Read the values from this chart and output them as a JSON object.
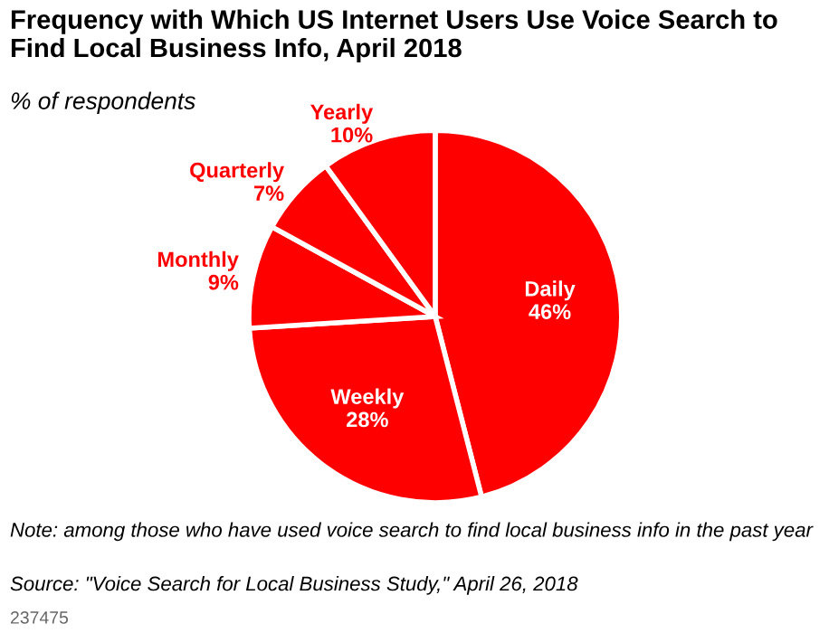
{
  "chart_data": {
    "type": "pie",
    "title": "Frequency with Which US Internet Users Use Voice Search to Find Local Business Info, April 2018",
    "subtitle": "% of respondents",
    "categories": [
      "Daily",
      "Weekly",
      "Monthly",
      "Quarterly",
      "Yearly"
    ],
    "values": [
      46,
      28,
      9,
      7,
      10
    ],
    "value_labels": [
      "46%",
      "28%",
      "9%",
      "7%",
      "10%"
    ],
    "colors": [
      "#ff0000",
      "#ff0000",
      "#ff0000",
      "#ff0000",
      "#ff0000"
    ],
    "annotations": [
      "Note: among those who have used voice search to find local business info in the past year",
      "Source: \"Voice Search for Local Business Study,\" April 26, 2018",
      "237475"
    ]
  }
}
